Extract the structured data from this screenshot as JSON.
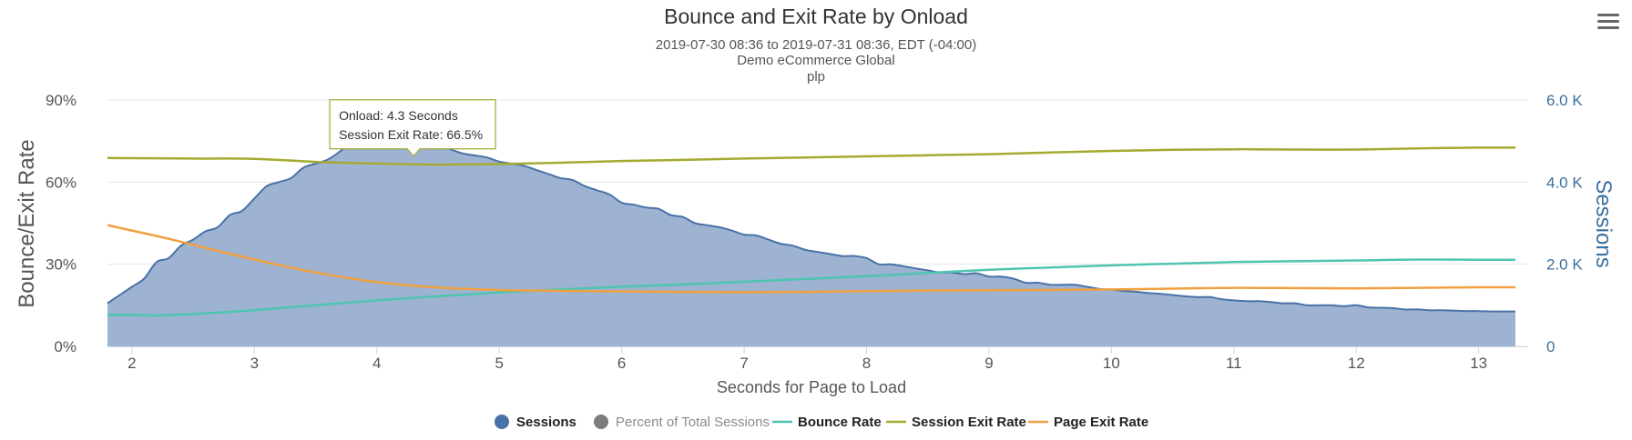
{
  "chart_data": {
    "type": "area",
    "title": "Bounce and Exit Rate by Onload",
    "subtitle": [
      "2019-07-30 08:36 to 2019-07-31 08:36, EDT (-04:00)",
      "Demo eCommerce Global",
      "plp"
    ],
    "xlabel": "Seconds for Page to Load",
    "ylabel_left": "Bounce/Exit Rate",
    "ylabel_right": "Sessions",
    "xlim": [
      1.8,
      13.3
    ],
    "ylim_left": [
      0,
      90
    ],
    "ylim_right": [
      0,
      6000
    ],
    "x_ticks": [
      "2",
      "3",
      "4",
      "5",
      "6",
      "7",
      "8",
      "9",
      "10",
      "11",
      "12",
      "13"
    ],
    "y_left_ticks": [
      "0%",
      "30%",
      "60%",
      "90%"
    ],
    "y_right_ticks": [
      "0",
      "2.0 K",
      "4.0 K",
      "6.0 K"
    ],
    "grid": true,
    "legend_position": "bottom",
    "series": [
      {
        "name": "Sessions",
        "axis": "right",
        "kind": "area",
        "color": "#4a72a8",
        "fill": "#9db3d1",
        "points": [
          [
            1.8,
            1050
          ],
          [
            2.0,
            1450
          ],
          [
            2.1,
            1650
          ],
          [
            2.2,
            2050
          ],
          [
            2.3,
            2150
          ],
          [
            2.4,
            2450
          ],
          [
            2.5,
            2600
          ],
          [
            2.6,
            2800
          ],
          [
            2.7,
            2900
          ],
          [
            2.8,
            3200
          ],
          [
            2.9,
            3300
          ],
          [
            3.0,
            3600
          ],
          [
            3.1,
            3900
          ],
          [
            3.2,
            4000
          ],
          [
            3.3,
            4100
          ],
          [
            3.4,
            4350
          ],
          [
            3.5,
            4450
          ],
          [
            3.6,
            4550
          ],
          [
            3.7,
            4750
          ],
          [
            3.8,
            5000
          ],
          [
            3.9,
            5100
          ],
          [
            4.0,
            5150
          ],
          [
            4.1,
            5200
          ],
          [
            4.2,
            5150
          ],
          [
            4.3,
            5100
          ],
          [
            4.4,
            5000
          ],
          [
            4.5,
            4900
          ],
          [
            4.6,
            4800
          ],
          [
            4.7,
            4700
          ],
          [
            4.8,
            4650
          ],
          [
            4.9,
            4600
          ],
          [
            5.0,
            4500
          ],
          [
            5.1,
            4450
          ],
          [
            5.2,
            4400
          ],
          [
            5.3,
            4300
          ],
          [
            5.4,
            4200
          ],
          [
            5.5,
            4100
          ],
          [
            5.6,
            4050
          ],
          [
            5.7,
            3900
          ],
          [
            5.8,
            3800
          ],
          [
            5.9,
            3700
          ],
          [
            6.0,
            3500
          ],
          [
            6.1,
            3450
          ],
          [
            6.2,
            3380
          ],
          [
            6.3,
            3350
          ],
          [
            6.4,
            3200
          ],
          [
            6.5,
            3150
          ],
          [
            6.6,
            3000
          ],
          [
            6.7,
            2950
          ],
          [
            6.8,
            2900
          ],
          [
            6.9,
            2820
          ],
          [
            7.0,
            2720
          ],
          [
            7.1,
            2700
          ],
          [
            7.2,
            2600
          ],
          [
            7.3,
            2500
          ],
          [
            7.4,
            2450
          ],
          [
            7.5,
            2350
          ],
          [
            7.6,
            2300
          ],
          [
            7.7,
            2250
          ],
          [
            7.8,
            2200
          ],
          [
            7.9,
            2200
          ],
          [
            8.0,
            2150
          ],
          [
            8.1,
            2000
          ],
          [
            8.2,
            2000
          ],
          [
            8.3,
            1950
          ],
          [
            8.4,
            1900
          ],
          [
            8.5,
            1850
          ],
          [
            8.6,
            1800
          ],
          [
            8.7,
            1800
          ],
          [
            8.8,
            1760
          ],
          [
            8.9,
            1780
          ],
          [
            9.0,
            1700
          ],
          [
            9.1,
            1700
          ],
          [
            9.2,
            1650
          ],
          [
            9.3,
            1550
          ],
          [
            9.4,
            1550
          ],
          [
            9.5,
            1500
          ],
          [
            9.6,
            1500
          ],
          [
            9.7,
            1500
          ],
          [
            9.8,
            1450
          ],
          [
            9.9,
            1400
          ],
          [
            10.0,
            1380
          ],
          [
            10.1,
            1350
          ],
          [
            10.2,
            1330
          ],
          [
            10.3,
            1300
          ],
          [
            10.4,
            1280
          ],
          [
            10.5,
            1250
          ],
          [
            10.6,
            1220
          ],
          [
            10.7,
            1200
          ],
          [
            10.8,
            1200
          ],
          [
            10.9,
            1150
          ],
          [
            11.0,
            1120
          ],
          [
            11.1,
            1100
          ],
          [
            11.2,
            1100
          ],
          [
            11.3,
            1080
          ],
          [
            11.4,
            1050
          ],
          [
            11.5,
            1050
          ],
          [
            11.6,
            1000
          ],
          [
            11.7,
            1000
          ],
          [
            11.8,
            1000
          ],
          [
            11.9,
            980
          ],
          [
            12.0,
            1000
          ],
          [
            12.1,
            950
          ],
          [
            12.2,
            940
          ],
          [
            12.3,
            930
          ],
          [
            12.4,
            900
          ],
          [
            12.5,
            900
          ],
          [
            12.6,
            880
          ],
          [
            12.7,
            880
          ],
          [
            12.8,
            870
          ],
          [
            12.9,
            860
          ],
          [
            13.0,
            860
          ],
          [
            13.1,
            850
          ],
          [
            13.2,
            850
          ],
          [
            13.3,
            850
          ]
        ]
      },
      {
        "name": "Percent of Total Sessions",
        "axis": "left",
        "kind": "hidden",
        "color": "#7c7c7c",
        "points": []
      },
      {
        "name": "Bounce Rate",
        "axis": "left",
        "kind": "line",
        "color": "#4fc4b0",
        "points": [
          [
            1.8,
            11.5
          ],
          [
            2.0,
            11.5
          ],
          [
            2.2,
            11.3
          ],
          [
            2.5,
            11.8
          ],
          [
            3.0,
            13.2
          ],
          [
            3.5,
            15.0
          ],
          [
            4.0,
            16.8
          ],
          [
            4.5,
            18.3
          ],
          [
            5.0,
            19.7
          ],
          [
            5.5,
            20.8
          ],
          [
            6.0,
            21.8
          ],
          [
            6.5,
            22.6
          ],
          [
            7.0,
            23.6
          ],
          [
            7.5,
            24.6
          ],
          [
            8.0,
            25.6
          ],
          [
            8.5,
            26.8
          ],
          [
            9.0,
            28.0
          ],
          [
            9.5,
            28.8
          ],
          [
            10.0,
            29.6
          ],
          [
            10.5,
            30.2
          ],
          [
            11.0,
            30.8
          ],
          [
            11.5,
            31.1
          ],
          [
            12.0,
            31.4
          ],
          [
            12.5,
            31.7
          ],
          [
            13.0,
            31.6
          ],
          [
            13.3,
            31.6
          ]
        ]
      },
      {
        "name": "Session Exit Rate",
        "axis": "left",
        "kind": "line",
        "color": "#a4aa30",
        "points": [
          [
            1.8,
            68.8
          ],
          [
            2.5,
            68.6
          ],
          [
            3.0,
            68.5
          ],
          [
            3.5,
            67.4
          ],
          [
            4.0,
            66.8
          ],
          [
            4.3,
            66.5
          ],
          [
            4.5,
            66.4
          ],
          [
            5.0,
            66.6
          ],
          [
            5.5,
            67.1
          ],
          [
            6.0,
            67.7
          ],
          [
            6.5,
            68.1
          ],
          [
            7.0,
            68.6
          ],
          [
            7.5,
            69.0
          ],
          [
            8.0,
            69.4
          ],
          [
            8.5,
            69.8
          ],
          [
            9.0,
            70.2
          ],
          [
            9.5,
            70.8
          ],
          [
            10.0,
            71.4
          ],
          [
            10.5,
            71.8
          ],
          [
            11.0,
            72.0
          ],
          [
            11.5,
            71.9
          ],
          [
            12.0,
            71.9
          ],
          [
            12.5,
            72.3
          ],
          [
            13.0,
            72.6
          ],
          [
            13.3,
            72.6
          ]
        ]
      },
      {
        "name": "Page Exit Rate",
        "axis": "left",
        "kind": "line",
        "color": "#f0a040",
        "points": [
          [
            1.8,
            44.3
          ],
          [
            2.0,
            42.3
          ],
          [
            2.3,
            39.3
          ],
          [
            2.6,
            36.0
          ],
          [
            3.0,
            31.7
          ],
          [
            3.5,
            27.0
          ],
          [
            4.0,
            23.5
          ],
          [
            4.5,
            21.5
          ],
          [
            5.0,
            20.6
          ],
          [
            5.5,
            20.3
          ],
          [
            6.0,
            20.1
          ],
          [
            6.5,
            19.9
          ],
          [
            7.0,
            19.8
          ],
          [
            7.5,
            19.9
          ],
          [
            8.0,
            20.2
          ],
          [
            8.5,
            20.4
          ],
          [
            9.0,
            20.5
          ],
          [
            9.5,
            20.6
          ],
          [
            10.0,
            20.8
          ],
          [
            10.5,
            21.1
          ],
          [
            11.0,
            21.4
          ],
          [
            11.5,
            21.3
          ],
          [
            12.0,
            21.2
          ],
          [
            12.5,
            21.4
          ],
          [
            13.0,
            21.6
          ],
          [
            13.3,
            21.6
          ]
        ]
      }
    ],
    "tooltip": {
      "lines": [
        "Onload: 4.3 Seconds",
        "Session Exit Rate: 66.5%"
      ],
      "x": 4.3,
      "y": 66.5,
      "border_color": "#a4aa30"
    }
  }
}
